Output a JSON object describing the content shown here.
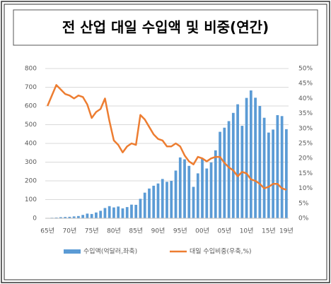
{
  "chart_data": {
    "type": "bar_line",
    "title": "전 산업 대일 수입액 및 비중(연간)",
    "categories": [
      "65년",
      null,
      null,
      null,
      null,
      "70년",
      null,
      null,
      null,
      null,
      "75년",
      null,
      null,
      null,
      null,
      "80년",
      null,
      null,
      null,
      null,
      "85년",
      null,
      null,
      null,
      null,
      "90년",
      null,
      null,
      null,
      null,
      "95년",
      null,
      null,
      null,
      null,
      "00년",
      null,
      null,
      null,
      null,
      "05년",
      null,
      null,
      null,
      null,
      "10년",
      null,
      null,
      null,
      null,
      "15년",
      null,
      null,
      null,
      "19년"
    ],
    "series": [
      {
        "name": "수입액(억달러,좌축)",
        "color": "#5b9bd5",
        "type": "bar",
        "axis": "y",
        "values": [
          2,
          3,
          4,
          6,
          7,
          8,
          10,
          12,
          18,
          25,
          23,
          31,
          40,
          55,
          65,
          58,
          63,
          53,
          60,
          73,
          72,
          104,
          137,
          159,
          174,
          186,
          210,
          195,
          200,
          255,
          325,
          315,
          280,
          168,
          240,
          318,
          266,
          298,
          363,
          462,
          484,
          519,
          563,
          609,
          494,
          643,
          683,
          644,
          600,
          537,
          458,
          474,
          551,
          546,
          476
        ]
      },
      {
        "name": "대일 수입비중(우축,%)",
        "color": "#ed7d31",
        "type": "line",
        "axis": "y2",
        "values": [
          37.5,
          41,
          44.5,
          43,
          41.5,
          41,
          40,
          41,
          40.5,
          38,
          33.5,
          35.5,
          36.5,
          40,
          32.5,
          26,
          24.5,
          22,
          24,
          25,
          24.5,
          34.5,
          33,
          30.5,
          28,
          26.5,
          26,
          24,
          24,
          25,
          24,
          21,
          19,
          18,
          20.5,
          20,
          19,
          20,
          20.5,
          20.5,
          18.5,
          17,
          16,
          14,
          15.5,
          15,
          13,
          12.5,
          11.5,
          10,
          10.5,
          11.5,
          11.5,
          10,
          9.5
        ]
      }
    ],
    "ylim": [
      0,
      800
    ],
    "yticks": [
      0,
      100,
      200,
      300,
      400,
      500,
      600,
      700,
      800
    ],
    "y2lim": [
      0,
      50
    ],
    "y2ticks": [
      {
        "value": 0,
        "label": "0%"
      },
      {
        "value": 5,
        "label": "5%"
      },
      {
        "value": 10,
        "label": "10%"
      },
      {
        "value": 15,
        "label": "15%"
      },
      {
        "value": 20,
        "label": "20%"
      },
      {
        "value": 25,
        "label": "25%"
      },
      {
        "value": 30,
        "label": "30%"
      },
      {
        "value": 35,
        "label": "35%"
      },
      {
        "value": 40,
        "label": "40%"
      },
      {
        "value": 45,
        "label": "45%"
      },
      {
        "value": 50,
        "label": "50%"
      }
    ],
    "grid": true,
    "legend": "bottom"
  }
}
